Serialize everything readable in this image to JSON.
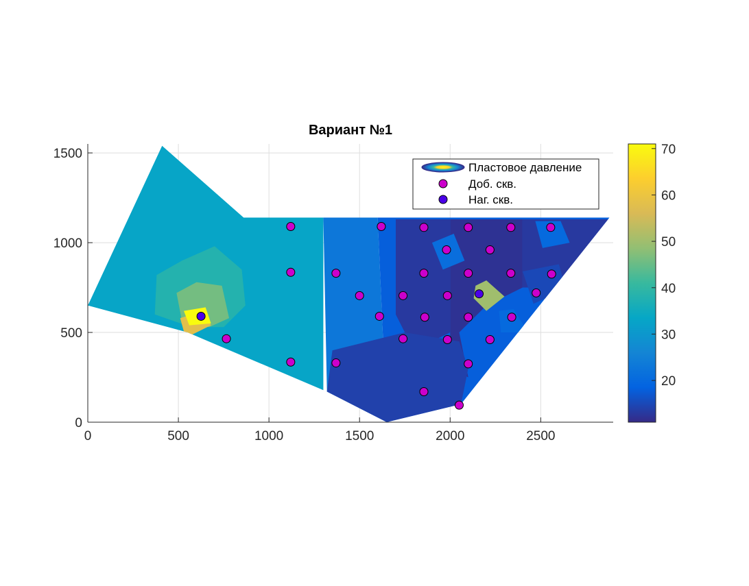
{
  "chart_data": {
    "type": "heatmap",
    "title": "Вариант №1",
    "xlabel": "",
    "ylabel": "",
    "xlim": [
      0,
      2900
    ],
    "ylim": [
      0,
      1550
    ],
    "x_ticks": [
      0,
      500,
      1000,
      1500,
      2000,
      2500
    ],
    "y_ticks": [
      0,
      500,
      1000,
      1500
    ],
    "grid": true,
    "legend_placement": "top-right",
    "legend": [
      {
        "label": "Пластовое давление",
        "marker": "filled-contour"
      },
      {
        "label": "Доб. скв.",
        "marker": "circle",
        "color": "#cc00cc"
      },
      {
        "label": "Наг. скв.",
        "marker": "circle",
        "color": "#4b00e8"
      }
    ],
    "colorbar": {
      "range": [
        11,
        71
      ],
      "ticks": [
        20,
        30,
        40,
        50,
        60,
        70
      ],
      "colors": [
        "#352a87",
        "#0363e1",
        "#1485d4",
        "#06a7c6",
        "#38b99e",
        "#92bf73",
        "#d9ba56",
        "#fcce2e",
        "#f9fb0e"
      ]
    },
    "domain_outline": [
      [
        0,
        650
      ],
      [
        410,
        1540
      ],
      [
        860,
        1140
      ],
      [
        2880,
        1140
      ],
      [
        2060,
        100
      ],
      [
        1650,
        0
      ],
      [
        1320,
        170
      ],
      [
        550,
        500
      ],
      [
        0,
        650
      ]
    ],
    "pressure_regions": [
      {
        "value": 33,
        "polygon": [
          [
            0,
            650
          ],
          [
            410,
            1540
          ],
          [
            860,
            1140
          ],
          [
            1300,
            1140
          ],
          [
            1300,
            170
          ],
          [
            550,
            500
          ]
        ]
      },
      {
        "value": 23,
        "polygon": [
          [
            1300,
            1140
          ],
          [
            1600,
            1140
          ],
          [
            1650,
            0
          ],
          [
            1320,
            170
          ]
        ]
      },
      {
        "value": 18,
        "polygon": [
          [
            1600,
            1140
          ],
          [
            2880,
            1140
          ],
          [
            2060,
            100
          ],
          [
            1650,
            0
          ]
        ]
      },
      {
        "value": 13,
        "polygon": [
          [
            1700,
            1130
          ],
          [
            2000,
            1130
          ],
          [
            2000,
            500
          ],
          [
            1800,
            400
          ],
          [
            1700,
            600
          ]
        ]
      },
      {
        "value": 12,
        "polygon": [
          [
            2000,
            1130
          ],
          [
            2400,
            1130
          ],
          [
            2400,
            750
          ],
          [
            2200,
            650
          ],
          [
            2050,
            500
          ],
          [
            2100,
            250
          ],
          [
            2000,
            300
          ]
        ]
      },
      {
        "value": 13,
        "polygon": [
          [
            2400,
            1130
          ],
          [
            2880,
            1130
          ],
          [
            2600,
            750
          ],
          [
            2400,
            750
          ]
        ]
      },
      {
        "value": 14,
        "polygon": [
          [
            1350,
            400
          ],
          [
            1750,
            500
          ],
          [
            2050,
            450
          ],
          [
            2100,
            300
          ],
          [
            2060,
            100
          ],
          [
            1650,
            0
          ],
          [
            1320,
            170
          ]
        ]
      },
      {
        "value": 21,
        "polygon": [
          [
            1900,
            1000
          ],
          [
            2020,
            1050
          ],
          [
            2080,
            900
          ],
          [
            1960,
            850
          ]
        ]
      },
      {
        "value": 20,
        "polygon": [
          [
            2270,
            620
          ],
          [
            2350,
            630
          ],
          [
            2430,
            500
          ],
          [
            2280,
            500
          ]
        ]
      },
      {
        "value": 38,
        "polygon": [
          [
            380,
            820
          ],
          [
            520,
            900
          ],
          [
            700,
            980
          ],
          [
            850,
            850
          ],
          [
            870,
            650
          ],
          [
            750,
            530
          ],
          [
            570,
            530
          ],
          [
            370,
            600
          ]
        ]
      },
      {
        "value": 46,
        "polygon": [
          [
            490,
            720
          ],
          [
            600,
            780
          ],
          [
            740,
            760
          ],
          [
            780,
            580
          ],
          [
            670,
            530
          ],
          [
            520,
            560
          ]
        ]
      },
      {
        "value": 58,
        "polygon": [
          [
            510,
            580
          ],
          [
            640,
            620
          ],
          [
            680,
            540
          ],
          [
            540,
            470
          ]
        ]
      },
      {
        "value": 71,
        "polygon": [
          [
            530,
            620
          ],
          [
            650,
            640
          ],
          [
            680,
            550
          ],
          [
            560,
            540
          ]
        ]
      },
      {
        "value": 50,
        "polygon": [
          [
            2140,
            760
          ],
          [
            2200,
            790
          ],
          [
            2300,
            700
          ],
          [
            2200,
            620
          ],
          [
            2130,
            690
          ]
        ]
      },
      {
        "value": 20,
        "polygon": [
          [
            2470,
            1120
          ],
          [
            2610,
            1120
          ],
          [
            2660,
            1000
          ],
          [
            2510,
            970
          ]
        ]
      },
      {
        "value": 15,
        "polygon": [
          [
            2400,
            840
          ],
          [
            2600,
            880
          ],
          [
            2640,
            740
          ],
          [
            2460,
            660
          ]
        ]
      }
    ],
    "production_wells": [
      [
        1120,
        1090
      ],
      [
        1620,
        1090
      ],
      [
        1855,
        1085
      ],
      [
        2100,
        1085
      ],
      [
        2335,
        1085
      ],
      [
        2555,
        1085
      ],
      [
        1980,
        960
      ],
      [
        2220,
        960
      ],
      [
        1120,
        835
      ],
      [
        1370,
        830
      ],
      [
        1855,
        830
      ],
      [
        2100,
        830
      ],
      [
        2335,
        830
      ],
      [
        2560,
        825
      ],
      [
        1500,
        705
      ],
      [
        1740,
        705
      ],
      [
        1985,
        705
      ],
      [
        2475,
        720
      ],
      [
        1610,
        590
      ],
      [
        1860,
        585
      ],
      [
        2100,
        585
      ],
      [
        2340,
        585
      ],
      [
        765,
        465
      ],
      [
        1740,
        465
      ],
      [
        1985,
        460
      ],
      [
        2220,
        460
      ],
      [
        1120,
        335
      ],
      [
        1370,
        330
      ],
      [
        2100,
        325
      ],
      [
        1855,
        170
      ],
      [
        2050,
        95
      ]
    ],
    "injection_wells": [
      [
        625,
        590
      ],
      [
        2160,
        715
      ]
    ]
  }
}
